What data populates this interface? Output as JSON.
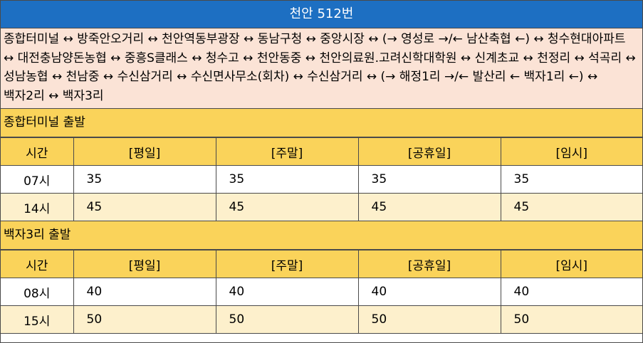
{
  "title": "천안 512번",
  "route": "종합터미널 ↔ 방죽안오거리 ↔ 천안역동부광장 ↔ 동남구청 ↔ 중앙시장 ↔ (→ 영성로 →/← 남산축협 ←) ↔ 청수현대아파트 ↔ 대전충남양돈농협 ↔ 중흥S클래스 ↔ 청수고 ↔ 천안동중 ↔ 천안의료원.고려신학대학원 ↔ 신계초교 ↔ 천정리 ↔ 석곡리 ↔ 성남농협 ↔ 천남중 ↔ 수신삼거리 ↔ 수신면사무소(회차) ↔ 수신삼거리 ↔ (→ 해정1리 →/← 발산리 ← 백자1리 ←) ↔ 백자2리 ↔ 백자3리",
  "columns": [
    "시간",
    "[평일]",
    "[주말]",
    "[공휴일]",
    "[임시]"
  ],
  "sections": [
    {
      "title": "종합터미널 출발",
      "rows": [
        {
          "time": "07시",
          "values": [
            "35",
            "35",
            "35",
            "35"
          ]
        },
        {
          "time": "14시",
          "values": [
            "45",
            "45",
            "45",
            "45"
          ]
        }
      ]
    },
    {
      "title": "백자3리 출발",
      "rows": [
        {
          "time": "08시",
          "values": [
            "40",
            "40",
            "40",
            "40"
          ]
        },
        {
          "time": "15시",
          "values": [
            "50",
            "50",
            "50",
            "50"
          ]
        }
      ]
    }
  ],
  "colors": {
    "title_bg": "#1d6fc2",
    "route_bg": "#fbe3d6",
    "header_bg": "#fad35a",
    "alt_row_bg": "#fdf0cc"
  }
}
